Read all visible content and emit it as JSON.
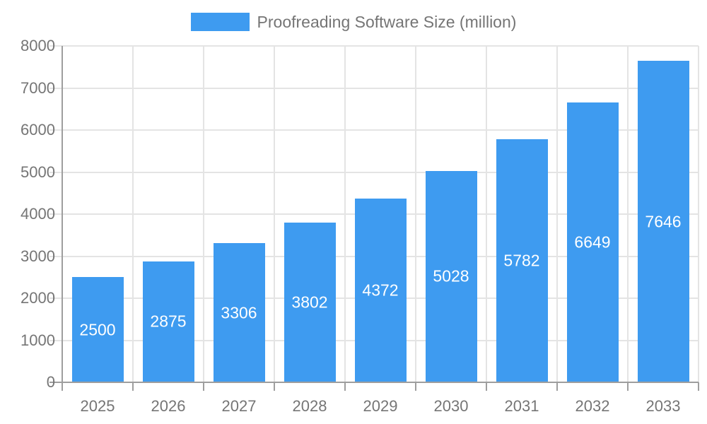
{
  "chart_data": {
    "type": "bar",
    "title": "Proofreading Software Size (million)",
    "legend": {
      "position": "top",
      "entries": [
        "Proofreading Software Size (million)"
      ]
    },
    "categories": [
      "2025",
      "2026",
      "2027",
      "2028",
      "2029",
      "2030",
      "2031",
      "2032",
      "2033"
    ],
    "series": [
      {
        "name": "Proofreading Software Size (million)",
        "values": [
          2500,
          2875,
          3306,
          3802,
          4372,
          5028,
          5782,
          6649,
          7646
        ]
      }
    ],
    "bar_labels": [
      "2500",
      "2875",
      "3306",
      "3802",
      "4372",
      "5028",
      "5782",
      "6649",
      "7646"
    ],
    "xlabel": "",
    "ylabel": "",
    "ylim": [
      0,
      8000
    ],
    "ytick_step": 1000,
    "ytick_labels": [
      "0",
      "1000",
      "2000",
      "3000",
      "4000",
      "5000",
      "6000",
      "7000",
      "8000"
    ],
    "grid": true,
    "colors": {
      "bar": "#3E9BF0",
      "bar_label": "#FFFFFF",
      "grid": "#E4E4E4",
      "axis": "#9E9E9E",
      "text": "#757575",
      "background": "#FFFFFF"
    }
  }
}
